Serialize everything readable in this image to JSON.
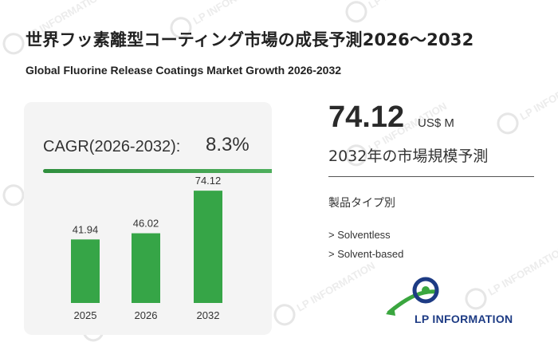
{
  "header": {
    "title_jp": "世界フッ素離型コーティング市場の成長予測2026～2032",
    "title_en": "Global Fluorine Release Coatings Market Growth 2026-2032"
  },
  "cagr": {
    "label": "CAGR(2026-2032):",
    "value": "8.3%"
  },
  "forecast": {
    "value": "74.12",
    "unit": "US$ M",
    "label": "2032年の市場規模予測"
  },
  "segments": {
    "heading": "製品タイプ別",
    "items": [
      "> Solventless",
      "> Solvent-based"
    ]
  },
  "brand": {
    "logo_text": "LP INFORMATION",
    "watermark_text": "LP INFORMATION"
  },
  "colors": {
    "bar": "#36a547",
    "accent_line": "#2f8f3e",
    "logo_blue": "#1d3b84",
    "logo_green": "#3aa63f"
  },
  "chart_data": {
    "type": "bar",
    "categories": [
      "2025",
      "2026",
      "2032"
    ],
    "values": [
      41.94,
      46.02,
      74.12
    ],
    "value_labels": [
      "41.94",
      "46.02",
      "74.12"
    ],
    "ylim": [
      0,
      100
    ],
    "grid": false,
    "legend": "none"
  }
}
